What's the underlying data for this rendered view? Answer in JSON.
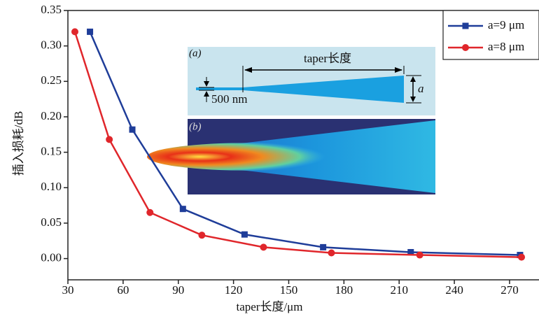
{
  "chart_data": {
    "type": "line",
    "x_label": "taper长度/μm",
    "y_label": "插入损耗/dB",
    "xlim": [
      30,
      286
    ],
    "ylim": [
      -0.03,
      0.35
    ],
    "xticks": [
      30,
      60,
      90,
      120,
      150,
      180,
      210,
      240,
      270
    ],
    "yticks": [
      {
        "value": 0,
        "label": "0.00"
      },
      {
        "value": 0.05,
        "label": "0.05"
      },
      {
        "value": 0.1,
        "label": "0.10"
      },
      {
        "value": 0.15,
        "label": "0.15"
      },
      {
        "value": 0.2,
        "label": "0.20"
      },
      {
        "value": 0.25,
        "label": "0.25"
      },
      {
        "value": 0.3,
        "label": "0.30"
      },
      {
        "value": 0.35,
        "label": "0.35"
      }
    ],
    "legend": "upper right",
    "series": [
      {
        "name": "a=9 μm",
        "color": "#1f3d99",
        "marker": "square",
        "x": [
          42,
          65,
          92.5,
          126,
          168.7,
          216.3,
          275.7
        ],
        "values": [
          0.32,
          0.182,
          0.07,
          0.034,
          0.016,
          0.009,
          0.005
        ]
      },
      {
        "name": "a=8 μm",
        "color": "#e0262b",
        "marker": "circle",
        "x": [
          33.8,
          52.5,
          74.6,
          102.8,
          136.3,
          173.2,
          221.2,
          276.5
        ],
        "values": [
          0.32,
          0.168,
          0.065,
          0.033,
          0.016,
          0.008,
          0.005,
          0.002
        ]
      }
    ],
    "annotations": [
      "(a)",
      "taper长度",
      "500 nm",
      "a",
      "(b)"
    ]
  }
}
